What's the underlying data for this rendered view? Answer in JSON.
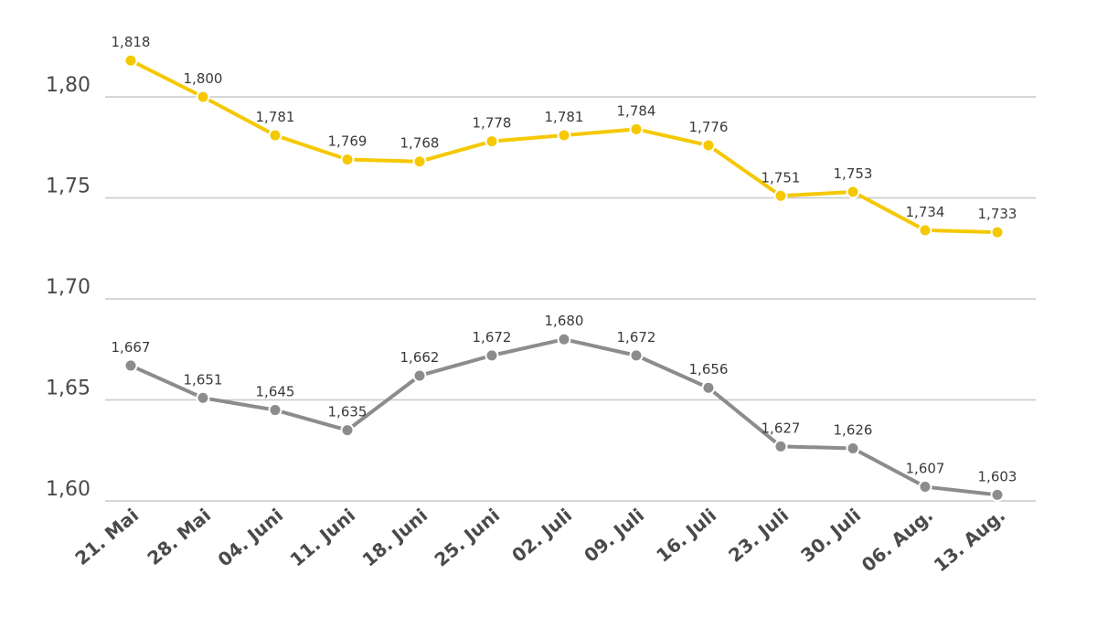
{
  "chart_data": {
    "type": "line",
    "title": "",
    "xlabel": "",
    "ylabel": "",
    "categories": [
      "21. Mai",
      "28. Mai",
      "04. Juni",
      "11. Juni",
      "18. Juni",
      "25. Juni",
      "02. Juli",
      "09. Juli",
      "16. Juli",
      "23. Juli",
      "30. Juli",
      "06. Aug.",
      "13. Aug."
    ],
    "ylim": [
      1.6,
      1.8
    ],
    "yticks": [
      1.6,
      1.65,
      1.7,
      1.75,
      1.8
    ],
    "ytick_labels": [
      "1,60",
      "1,65",
      "1,70",
      "1,75",
      "1,80"
    ],
    "grid": true,
    "legend": "none",
    "series": [
      {
        "name": "Series 1",
        "color": "#f5c800",
        "values": [
          1.818,
          1.8,
          1.781,
          1.769,
          1.768,
          1.778,
          1.781,
          1.784,
          1.776,
          1.751,
          1.753,
          1.734,
          1.733
        ],
        "labels": [
          "1,818",
          "1,800",
          "1,781",
          "1,769",
          "1,768",
          "1,778",
          "1,781",
          "1,784",
          "1,776",
          "1,751",
          "1,753",
          "1,734",
          "1,733"
        ]
      },
      {
        "name": "Series 2",
        "color": "#8c8c8c",
        "values": [
          1.667,
          1.651,
          1.645,
          1.635,
          1.662,
          1.672,
          1.68,
          1.672,
          1.656,
          1.627,
          1.626,
          1.607,
          1.603
        ],
        "labels": [
          "1,667",
          "1,651",
          "1,645",
          "1,635",
          "1,662",
          "1,672",
          "1,680",
          "1,672",
          "1,656",
          "1,627",
          "1,626",
          "1,607",
          "1,603"
        ]
      }
    ]
  }
}
